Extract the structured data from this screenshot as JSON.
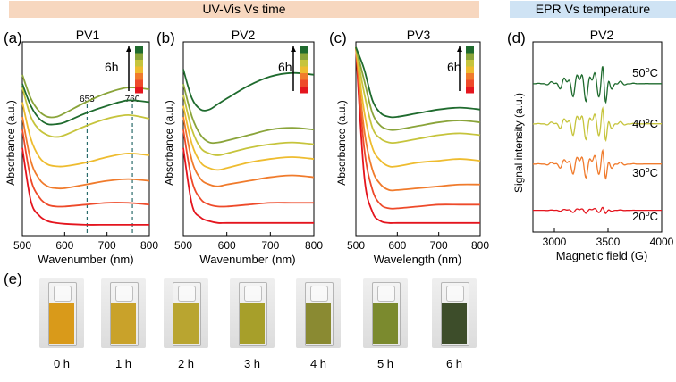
{
  "banners": {
    "uvvis": "UV-Vis Vs time",
    "epr": "EPR Vs temperature"
  },
  "panel_letters": [
    "(a)",
    "(b)",
    "(c)",
    "(d)",
    "(e)"
  ],
  "colorbar_label": "6h",
  "colors": {
    "banner_uvvis": "#f7d7bf",
    "banner_epr": "#cfe3f4",
    "series": [
      "#e4151e",
      "#ee4a2a",
      "#f07b2c",
      "#eebc2f",
      "#c6c43c",
      "#8aa43a",
      "#1f6b2e"
    ]
  },
  "chart_data": [
    {
      "type": "line",
      "panel": "(a)",
      "title": "PV1",
      "xlabel": "Wavenumber (nm)",
      "ylabel": "Absorbance (a.u.)",
      "xlim": [
        500,
        800
      ],
      "xticks": [
        "500",
        "600",
        "700",
        "800"
      ],
      "annotations": [
        "653",
        "760"
      ],
      "vlines": [
        653,
        760
      ],
      "x": [
        500,
        520,
        540,
        560,
        580,
        600,
        650,
        700,
        750,
        800
      ],
      "series": [
        {
          "values": [
            0.45,
            0.16,
            0.08,
            0.05,
            0.04,
            0.035,
            0.03,
            0.03,
            0.03,
            0.03
          ]
        },
        {
          "values": [
            0.55,
            0.28,
            0.18,
            0.14,
            0.13,
            0.13,
            0.14,
            0.15,
            0.15,
            0.14
          ]
        },
        {
          "values": [
            0.62,
            0.38,
            0.28,
            0.24,
            0.23,
            0.23,
            0.25,
            0.27,
            0.28,
            0.27
          ]
        },
        {
          "values": [
            0.7,
            0.5,
            0.4,
            0.36,
            0.35,
            0.35,
            0.37,
            0.4,
            0.42,
            0.41
          ]
        },
        {
          "values": [
            0.78,
            0.62,
            0.55,
            0.52,
            0.51,
            0.52,
            0.57,
            0.61,
            0.63,
            0.61
          ]
        },
        {
          "values": [
            0.85,
            0.72,
            0.65,
            0.62,
            0.62,
            0.64,
            0.7,
            0.75,
            0.78,
            0.77
          ]
        },
        {
          "values": [
            0.8,
            0.68,
            0.61,
            0.58,
            0.58,
            0.59,
            0.64,
            0.68,
            0.71,
            0.7
          ]
        }
      ]
    },
    {
      "type": "line",
      "panel": "(b)",
      "title": "PV2",
      "xlabel": "Wavenumber (nm)",
      "ylabel": "Absorbance (a.u.)",
      "xlim": [
        500,
        800
      ],
      "xticks": [
        "500",
        "600",
        "700",
        "800"
      ],
      "x": [
        500,
        520,
        540,
        560,
        580,
        600,
        650,
        700,
        750,
        800
      ],
      "series": [
        {
          "values": [
            0.45,
            0.14,
            0.07,
            0.05,
            0.04,
            0.04,
            0.04,
            0.04,
            0.04,
            0.04
          ]
        },
        {
          "values": [
            0.55,
            0.27,
            0.17,
            0.14,
            0.13,
            0.13,
            0.14,
            0.15,
            0.15,
            0.15
          ]
        },
        {
          "values": [
            0.62,
            0.38,
            0.28,
            0.25,
            0.24,
            0.25,
            0.27,
            0.29,
            0.3,
            0.29
          ]
        },
        {
          "values": [
            0.68,
            0.47,
            0.37,
            0.34,
            0.33,
            0.34,
            0.37,
            0.39,
            0.4,
            0.39
          ]
        },
        {
          "values": [
            0.74,
            0.55,
            0.45,
            0.42,
            0.41,
            0.42,
            0.45,
            0.47,
            0.48,
            0.47
          ]
        },
        {
          "values": [
            0.8,
            0.62,
            0.52,
            0.48,
            0.48,
            0.49,
            0.52,
            0.55,
            0.56,
            0.55
          ]
        },
        {
          "values": [
            0.88,
            0.72,
            0.66,
            0.66,
            0.69,
            0.72,
            0.79,
            0.84,
            0.86,
            0.85
          ]
        }
      ]
    },
    {
      "type": "line",
      "panel": "(c)",
      "title": "PV3",
      "xlabel": "Wavelength (nm)",
      "ylabel": "Absorbance (a.u.)",
      "xlim": [
        500,
        800
      ],
      "xticks": [
        "500",
        "600",
        "700",
        "800"
      ],
      "x": [
        500,
        520,
        540,
        560,
        580,
        600,
        650,
        700,
        750,
        800
      ],
      "series": [
        {
          "values": [
            1.0,
            0.3,
            0.1,
            0.05,
            0.04,
            0.04,
            0.04,
            0.04,
            0.04,
            0.04
          ]
        },
        {
          "values": [
            1.0,
            0.45,
            0.22,
            0.14,
            0.12,
            0.12,
            0.13,
            0.14,
            0.14,
            0.14
          ]
        },
        {
          "values": [
            1.0,
            0.55,
            0.33,
            0.25,
            0.22,
            0.22,
            0.23,
            0.24,
            0.25,
            0.25
          ]
        },
        {
          "values": [
            1.0,
            0.65,
            0.45,
            0.38,
            0.35,
            0.35,
            0.37,
            0.38,
            0.39,
            0.38
          ]
        },
        {
          "values": [
            1.0,
            0.75,
            0.56,
            0.5,
            0.48,
            0.48,
            0.5,
            0.52,
            0.53,
            0.52
          ]
        },
        {
          "values": [
            1.0,
            0.82,
            0.64,
            0.57,
            0.55,
            0.55,
            0.57,
            0.59,
            0.6,
            0.59
          ]
        },
        {
          "values": [
            1.0,
            0.88,
            0.71,
            0.64,
            0.62,
            0.62,
            0.64,
            0.66,
            0.67,
            0.66
          ]
        }
      ]
    },
    {
      "type": "line",
      "panel": "(d)",
      "title": "PV2",
      "xlabel": "Magnetic field (G)",
      "ylabel": "Signal intensity (a.u.)",
      "xlim": [
        2800,
        4000
      ],
      "xticks": [
        "3000",
        "3500",
        "4000"
      ],
      "series": [
        {
          "name": "20°C",
          "color": "#e4151e",
          "baseline": 0.06,
          "amplitude": 0.015
        },
        {
          "name": "30°C",
          "color": "#f07b2c",
          "baseline": 0.36,
          "amplitude": 0.07
        },
        {
          "name": "40°C",
          "color": "#c6c43c",
          "baseline": 0.62,
          "amplitude": 0.08
        },
        {
          "name": "50°C",
          "color": "#1f6b2e",
          "baseline": 0.88,
          "amplitude": 0.09
        }
      ],
      "legend_labels": [
        {
          "base": "50",
          "sup": "o",
          "unit": "C"
        },
        {
          "base": "40",
          "sup": "o",
          "unit": "C"
        },
        {
          "base": "30",
          "sup": "o",
          "unit": "C"
        },
        {
          "base": "20",
          "sup": "o",
          "unit": "C"
        }
      ]
    }
  ],
  "photos": [
    {
      "label": "0 h",
      "liquid": "#d99a1a"
    },
    {
      "label": "1 h",
      "liquid": "#c9a22a"
    },
    {
      "label": "2 h",
      "liquid": "#b9a530"
    },
    {
      "label": "3 h",
      "liquid": "#a79f2a"
    },
    {
      "label": "4 h",
      "liquid": "#8a8a32"
    },
    {
      "label": "5 h",
      "liquid": "#7b8a2e"
    },
    {
      "label": "6 h",
      "liquid": "#3d4d2a"
    }
  ]
}
